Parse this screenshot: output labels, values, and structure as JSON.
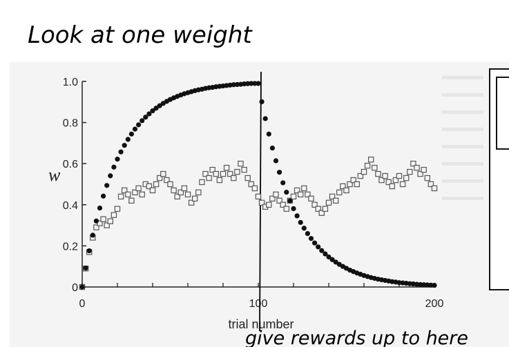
{
  "annotations": {
    "top": "Look at one weight",
    "bottom": "give rewards up to here"
  },
  "chart_data": {
    "type": "scatter",
    "title": "",
    "xlabel": "trial number",
    "ylabel": "w",
    "xlim": [
      0,
      200
    ],
    "ylim": [
      0,
      1.0
    ],
    "xticks": [
      0,
      100,
      200
    ],
    "xtick_labels": [
      "0",
      "100",
      "200"
    ],
    "yticks": [
      0,
      0.2,
      0.4,
      0.6,
      0.8,
      1.0
    ],
    "ytick_labels": [
      "0",
      "0.2",
      "0.4",
      "0.6",
      "0.8",
      "1.0"
    ],
    "grid": false,
    "marker_line_x": 100,
    "series": [
      {
        "marker": "filled-circle",
        "color": "#111111",
        "x": [
          0,
          2,
          4,
          6,
          8,
          10,
          12,
          14,
          16,
          18,
          20,
          22,
          24,
          26,
          28,
          30,
          32,
          34,
          36,
          38,
          40,
          42,
          44,
          46,
          48,
          50,
          52,
          54,
          56,
          58,
          60,
          62,
          64,
          66,
          68,
          70,
          72,
          74,
          76,
          78,
          80,
          82,
          84,
          86,
          88,
          90,
          92,
          94,
          96,
          98,
          100,
          102,
          104,
          106,
          108,
          110,
          112,
          114,
          116,
          118,
          120,
          122,
          124,
          126,
          128,
          130,
          132,
          134,
          136,
          138,
          140,
          142,
          144,
          146,
          148,
          150,
          152,
          154,
          156,
          158,
          160,
          162,
          164,
          166,
          168,
          170,
          172,
          174,
          176,
          178,
          180,
          182,
          184,
          186,
          188,
          190,
          192,
          194,
          196,
          198,
          200
        ],
        "y": [
          0,
          0.092,
          0.176,
          0.252,
          0.321,
          0.384,
          0.442,
          0.494,
          0.541,
          0.583,
          0.622,
          0.657,
          0.689,
          0.718,
          0.744,
          0.768,
          0.789,
          0.809,
          0.826,
          0.842,
          0.857,
          0.87,
          0.882,
          0.893,
          0.903,
          0.912,
          0.92,
          0.927,
          0.934,
          0.94,
          0.945,
          0.95,
          0.955,
          0.959,
          0.962,
          0.966,
          0.969,
          0.971,
          0.974,
          0.976,
          0.978,
          0.98,
          0.982,
          0.984,
          0.985,
          0.986,
          0.988,
          0.989,
          0.99,
          0.99,
          0.99,
          0.901,
          0.819,
          0.744,
          0.676,
          0.614,
          0.558,
          0.507,
          0.461,
          0.419,
          0.381,
          0.346,
          0.314,
          0.286,
          0.26,
          0.236,
          0.214,
          0.195,
          0.177,
          0.161,
          0.146,
          0.133,
          0.121,
          0.11,
          0.1,
          0.091,
          0.082,
          0.075,
          0.068,
          0.062,
          0.056,
          0.051,
          0.046,
          0.042,
          0.038,
          0.035,
          0.032,
          0.029,
          0.026,
          0.024,
          0.021,
          0.02,
          0.018,
          0.016,
          0.015,
          0.013,
          0.012,
          0.011,
          0.01,
          0.009,
          0.008
        ]
      },
      {
        "marker": "open-square",
        "color": "#555555",
        "x": [
          0,
          2,
          4,
          6,
          8,
          10,
          12,
          14,
          16,
          18,
          20,
          22,
          24,
          26,
          28,
          30,
          32,
          34,
          36,
          38,
          40,
          42,
          44,
          46,
          48,
          50,
          52,
          54,
          56,
          58,
          60,
          62,
          64,
          66,
          68,
          70,
          72,
          74,
          76,
          78,
          80,
          82,
          84,
          86,
          88,
          90,
          92,
          94,
          96,
          98,
          100,
          102,
          104,
          106,
          108,
          110,
          112,
          114,
          116,
          118,
          120,
          122,
          124,
          126,
          128,
          130,
          132,
          134,
          136,
          138,
          140,
          142,
          144,
          146,
          148,
          150,
          152,
          154,
          156,
          158,
          160,
          162,
          164,
          166,
          168,
          170,
          172,
          174,
          176,
          178,
          180,
          182,
          184,
          186,
          188,
          190,
          192,
          194,
          196,
          198,
          200
        ],
        "y": [
          0,
          0.09,
          0.17,
          0.24,
          0.29,
          0.31,
          0.33,
          0.3,
          0.32,
          0.35,
          0.38,
          0.44,
          0.47,
          0.45,
          0.42,
          0.46,
          0.48,
          0.45,
          0.5,
          0.49,
          0.47,
          0.5,
          0.53,
          0.55,
          0.52,
          0.5,
          0.47,
          0.44,
          0.46,
          0.48,
          0.45,
          0.41,
          0.43,
          0.46,
          0.51,
          0.55,
          0.53,
          0.57,
          0.55,
          0.52,
          0.55,
          0.58,
          0.55,
          0.53,
          0.56,
          0.6,
          0.57,
          0.53,
          0.5,
          0.48,
          0.44,
          0.41,
          0.39,
          0.4,
          0.43,
          0.45,
          0.42,
          0.4,
          0.38,
          0.42,
          0.44,
          0.47,
          0.45,
          0.48,
          0.45,
          0.43,
          0.4,
          0.38,
          0.36,
          0.38,
          0.41,
          0.44,
          0.42,
          0.46,
          0.49,
          0.47,
          0.5,
          0.52,
          0.5,
          0.54,
          0.56,
          0.59,
          0.62,
          0.58,
          0.55,
          0.52,
          0.54,
          0.51,
          0.49,
          0.52,
          0.54,
          0.5,
          0.53,
          0.56,
          0.6,
          0.58,
          0.55,
          0.57,
          0.53,
          0.5,
          0.48
        ]
      }
    ]
  }
}
